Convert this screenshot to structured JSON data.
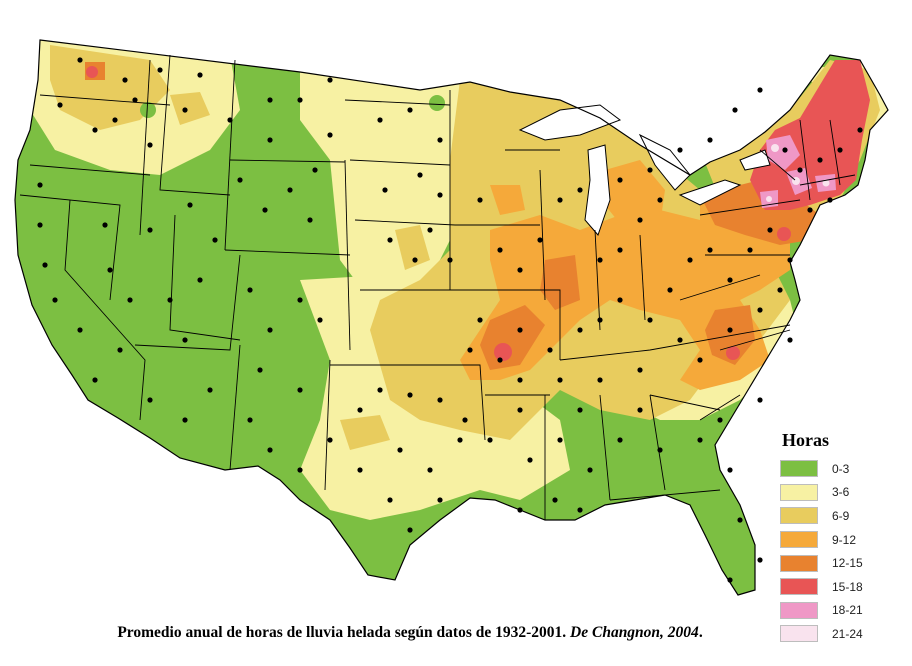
{
  "legend": {
    "title": "Horas",
    "items": [
      {
        "label": "0-3",
        "color": "#7cbf42"
      },
      {
        "label": "3-6",
        "color": "#f7f1a3"
      },
      {
        "label": "6-9",
        "color": "#e8cc5e"
      },
      {
        "label": "9-12",
        "color": "#f5a93a"
      },
      {
        "label": "12-15",
        "color": "#e8822f"
      },
      {
        "label": "15-18",
        "color": "#e85555"
      },
      {
        "label": "18-21",
        "color": "#ef98c6"
      },
      {
        "label": "21-24",
        "color": "#f9e3ee"
      }
    ]
  },
  "caption": {
    "main": "Promedio anual de horas de lluvia helada según datos de 1932-2001.",
    "source": "De Changnon, 2004",
    "end": "."
  },
  "map_colors": {
    "zone_0_3": "#7cbf42",
    "zone_3_6": "#f7f1a3",
    "zone_6_9": "#e8cc5e",
    "zone_9_12": "#f5a93a",
    "zone_12_15": "#e8822f",
    "zone_15_18": "#e85555",
    "zone_18_21": "#ef98c6",
    "zone_21_24": "#f9e3ee",
    "borders": "#000000",
    "stations": "#000000"
  }
}
